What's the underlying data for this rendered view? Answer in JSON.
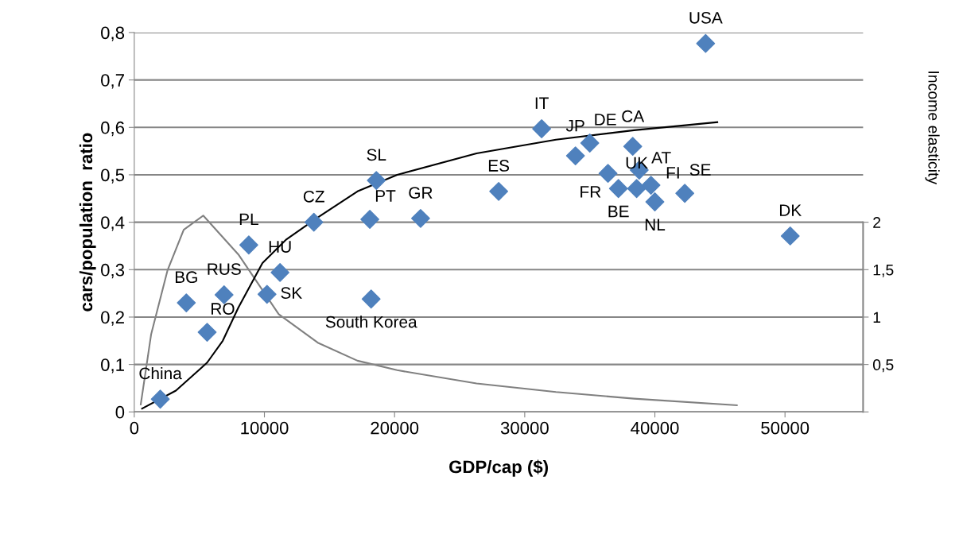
{
  "chart_data": {
    "type": "scatter",
    "xlabel": "GDP/cap ($)",
    "ylabel": "cars/population  ratio",
    "y2label": "Income elasticity",
    "xlim": [
      0,
      56000
    ],
    "xticks": [
      0,
      10000,
      20000,
      30000,
      40000,
      50000
    ],
    "ylim": [
      0,
      0.8
    ],
    "yticks": [
      0,
      {
        "value": 0.1,
        "label": "0,1"
      },
      {
        "value": 0.2,
        "label": "0,2"
      },
      {
        "value": 0.3,
        "label": "0,3"
      },
      {
        "value": 0.4,
        "label": "0,4"
      },
      {
        "value": 0.5,
        "label": "0,5"
      },
      {
        "value": 0.6,
        "label": "0,6"
      },
      {
        "value": 0.7,
        "label": "0,7"
      },
      {
        "value": 0.8,
        "label": "0,8"
      }
    ],
    "y2lim": [
      0,
      4
    ],
    "y2ticks": [
      {
        "value": 0,
        "label": null
      },
      {
        "value": 0.5,
        "label": "0,5"
      },
      {
        "value": 1,
        "label": "1"
      },
      {
        "value": 1.5,
        "label": "1,5"
      },
      {
        "value": 2,
        "label": "2"
      }
    ],
    "grid": "y",
    "legend": false,
    "series": [
      {
        "type": "scatter",
        "marker": "diamond",
        "color": "#4f81bd",
        "x": [
          2000,
          4000,
          5600,
          6900,
          8800,
          10200,
          11200,
          13800,
          18100,
          18200,
          18600,
          22000,
          28000,
          31300,
          33900,
          35000,
          36400,
          37200,
          38300,
          38800,
          38600,
          39700,
          40000,
          42300,
          43900,
          50400
        ],
        "values": [
          0.027,
          0.23,
          0.168,
          0.247,
          0.352,
          0.248,
          0.294,
          0.4,
          0.406,
          0.238,
          0.488,
          0.408,
          0.465,
          0.597,
          0.54,
          0.567,
          0.503,
          0.471,
          0.56,
          0.51,
          0.471,
          0.478,
          0.443,
          0.461,
          0.777,
          0.371
        ]
      },
      {
        "type": "line",
        "color": "#000000",
        "marker": "none",
        "x": [
          600,
          3200,
          5600,
          6800,
          8000,
          9850,
          11700,
          14100,
          17150,
          20200,
          26300,
          32400,
          38400,
          44800
        ],
        "values": [
          0.007,
          0.045,
          0.104,
          0.15,
          0.22,
          0.314,
          0.364,
          0.41,
          0.465,
          0.5,
          0.545,
          0.574,
          0.594,
          0.611
        ]
      },
      {
        "type": "line",
        "axis": "y2",
        "color": "#808080",
        "marker": "none",
        "x": [
          500,
          1300,
          2550,
          3800,
          5300,
          8000,
          11100,
          14100,
          17150,
          20200,
          26300,
          32400,
          38400,
          46300
        ],
        "values": [
          0.08,
          0.82,
          1.49,
          1.92,
          2.07,
          1.66,
          1.03,
          0.73,
          0.54,
          0.44,
          0.3,
          0.21,
          0.14,
          0.07
        ]
      }
    ],
    "annotations": [
      {
        "text": "China",
        "x": 2000,
        "y": 0.027
      },
      {
        "text": "BG",
        "x": 4000,
        "y": 0.23
      },
      {
        "text": "RO",
        "x": 5600,
        "y": 0.168
      },
      {
        "text": "RUS",
        "x": 6900,
        "y": 0.247
      },
      {
        "text": "PL",
        "x": 8800,
        "y": 0.352
      },
      {
        "text": "SK",
        "x": 10200,
        "y": 0.248
      },
      {
        "text": "HU",
        "x": 11200,
        "y": 0.294
      },
      {
        "text": "CZ",
        "x": 13800,
        "y": 0.4
      },
      {
        "text": "PT",
        "x": 18100,
        "y": 0.406
      },
      {
        "text": "South Korea",
        "x": 18200,
        "y": 0.238
      },
      {
        "text": "SL",
        "x": 18600,
        "y": 0.488
      },
      {
        "text": "GR",
        "x": 22000,
        "y": 0.408
      },
      {
        "text": "ES",
        "x": 28000,
        "y": 0.465
      },
      {
        "text": "IT",
        "x": 31300,
        "y": 0.597
      },
      {
        "text": "JP",
        "x": 33900,
        "y": 0.54
      },
      {
        "text": "DE",
        "x": 35000,
        "y": 0.567
      },
      {
        "text": "FR",
        "x": 36400,
        "y": 0.503
      },
      {
        "text": "BE",
        "x": 37200,
        "y": 0.471
      },
      {
        "text": "CA",
        "x": 38300,
        "y": 0.56
      },
      {
        "text": "AT",
        "x": 38800,
        "y": 0.51
      },
      {
        "text": "UK",
        "x": 38600,
        "y": 0.471
      },
      {
        "text": "FI",
        "x": 39700,
        "y": 0.478
      },
      {
        "text": "NL",
        "x": 40000,
        "y": 0.443
      },
      {
        "text": "SE",
        "x": 42300,
        "y": 0.461
      },
      {
        "text": "USA",
        "x": 43900,
        "y": 0.777
      },
      {
        "text": "DK",
        "x": 50400,
        "y": 0.371
      }
    ]
  }
}
